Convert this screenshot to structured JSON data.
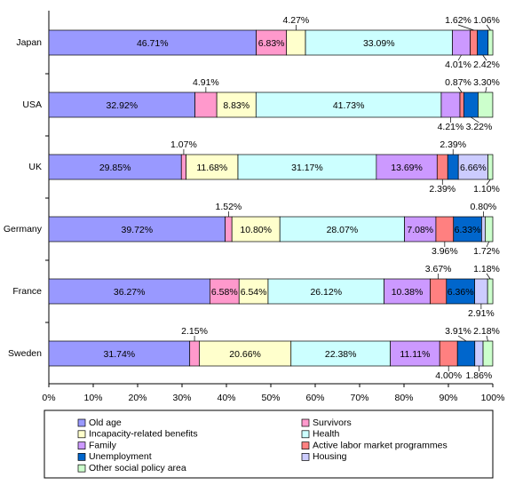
{
  "chart_data": {
    "type": "stacked-bar-horizontal",
    "categories": [
      "Japan",
      "USA",
      "UK",
      "Germany",
      "France",
      "Sweden"
    ],
    "xlim": [
      0,
      100
    ],
    "xticks": [
      {
        "value": 0,
        "label": "0%"
      },
      {
        "value": 10,
        "label": "10%"
      },
      {
        "value": 20,
        "label": "20%"
      },
      {
        "value": 30,
        "label": "30%"
      },
      {
        "value": 40,
        "label": "40%"
      },
      {
        "value": 50,
        "label": "50%"
      },
      {
        "value": 60,
        "label": "60%"
      },
      {
        "value": 70,
        "label": "70%"
      },
      {
        "value": 80,
        "label": "80%"
      },
      {
        "value": 90,
        "label": "90%"
      },
      {
        "value": 100,
        "label": "100%"
      }
    ],
    "series": [
      {
        "name": "Old age",
        "color": "#9999ff",
        "values": [
          46.71,
          32.92,
          29.85,
          39.72,
          36.27,
          31.74
        ],
        "value_labels": [
          "46.71%",
          "32.92%",
          "29.85%",
          "39.72%",
          "36.27%",
          "31.74%"
        ]
      },
      {
        "name": "Survivors",
        "color": "#ff99cc",
        "values": [
          6.83,
          4.91,
          1.07,
          1.52,
          6.58,
          2.15
        ],
        "value_labels": [
          "6.83%",
          "4.91%",
          "1.07%",
          "1.52%",
          "6.58%",
          "2.15%"
        ]
      },
      {
        "name": "Incapacity-related benefits",
        "color": "#ffffcc",
        "values": [
          4.27,
          8.83,
          11.68,
          10.8,
          6.54,
          20.66
        ],
        "value_labels": [
          "4.27%",
          "8.83%",
          "11.68%",
          "10.80%",
          "6.54%",
          "20.66%"
        ]
      },
      {
        "name": "Health",
        "color": "#ccffff",
        "values": [
          33.09,
          41.73,
          31.17,
          28.07,
          26.12,
          22.38
        ],
        "value_labels": [
          "33.09%",
          "41.73%",
          "31.17%",
          "28.07%",
          "26.12%",
          "22.38%"
        ]
      },
      {
        "name": "Family",
        "color": "#cc99ff",
        "values": [
          4.01,
          4.21,
          13.69,
          7.08,
          10.38,
          11.11
        ],
        "value_labels": [
          "4.01%",
          "4.21%",
          "13.69%",
          "7.08%",
          "10.38%",
          "11.11%"
        ]
      },
      {
        "name": "Active labor market programmes",
        "color": "#ff8080",
        "values": [
          1.62,
          0.87,
          2.39,
          3.96,
          3.67,
          4.0
        ],
        "value_labels": [
          "1.62%",
          "0.87%",
          "2.39%",
          "3.96%",
          "3.67%",
          "4.00%"
        ]
      },
      {
        "name": "Unemployment",
        "color": "#0066cc",
        "values": [
          2.42,
          3.22,
          2.39,
          6.33,
          6.36,
          3.91
        ],
        "value_labels": [
          "2.42%",
          "3.22%",
          "2.39%",
          "6.33%",
          "6.36%",
          "3.91%"
        ]
      },
      {
        "name": "Housing",
        "color": "#ccccff",
        "values": [
          null,
          null,
          6.66,
          0.8,
          2.91,
          1.86
        ],
        "value_labels": [
          null,
          null,
          "6.66%",
          "0.80%",
          "2.91%",
          "1.86%"
        ]
      },
      {
        "name": "Other social policy area",
        "color": "#ccffcc",
        "values": [
          1.06,
          3.3,
          1.1,
          1.72,
          1.18,
          2.18
        ],
        "value_labels": [
          "1.06%",
          "3.30%",
          "1.10%",
          "1.72%",
          "1.18%",
          "2.18%"
        ]
      }
    ]
  }
}
